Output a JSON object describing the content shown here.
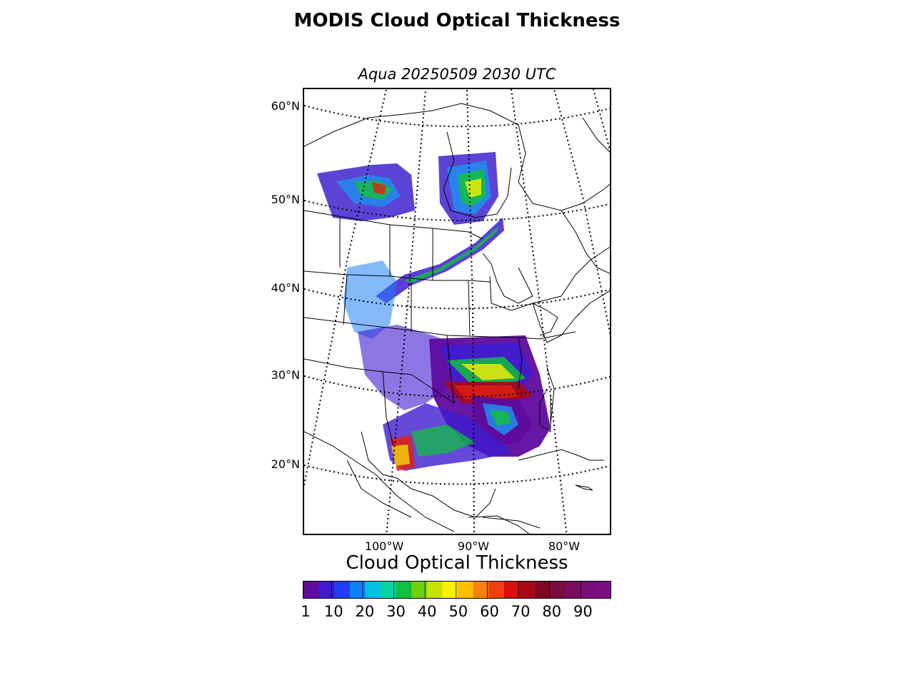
{
  "title": "MODIS Cloud Optical Thickness",
  "subtitle": "Aqua 20250509 2030 UTC",
  "map": {
    "lat_labels": [
      "60°N",
      "50°N",
      "40°N",
      "30°N",
      "20°N"
    ],
    "lon_labels": [
      "100°W",
      "90°W",
      "80°W"
    ]
  },
  "colorbar": {
    "label": "Cloud Optical Thickness",
    "ticks": [
      "1",
      "10",
      "20",
      "30",
      "40",
      "50",
      "60",
      "70",
      "80",
      "90"
    ],
    "range": [
      1,
      100
    ],
    "colors": [
      "#5e0b9e",
      "#3f1bd0",
      "#1f3ff5",
      "#0f7ff8",
      "#05bfe5",
      "#06d4a0",
      "#10c040",
      "#6fd010",
      "#c8e000",
      "#f8f000",
      "#fcc000",
      "#f88010",
      "#f04010",
      "#d81010",
      "#a80818",
      "#800820",
      "#780c40",
      "#780c60",
      "#780f78",
      "#7a1080"
    ]
  }
}
